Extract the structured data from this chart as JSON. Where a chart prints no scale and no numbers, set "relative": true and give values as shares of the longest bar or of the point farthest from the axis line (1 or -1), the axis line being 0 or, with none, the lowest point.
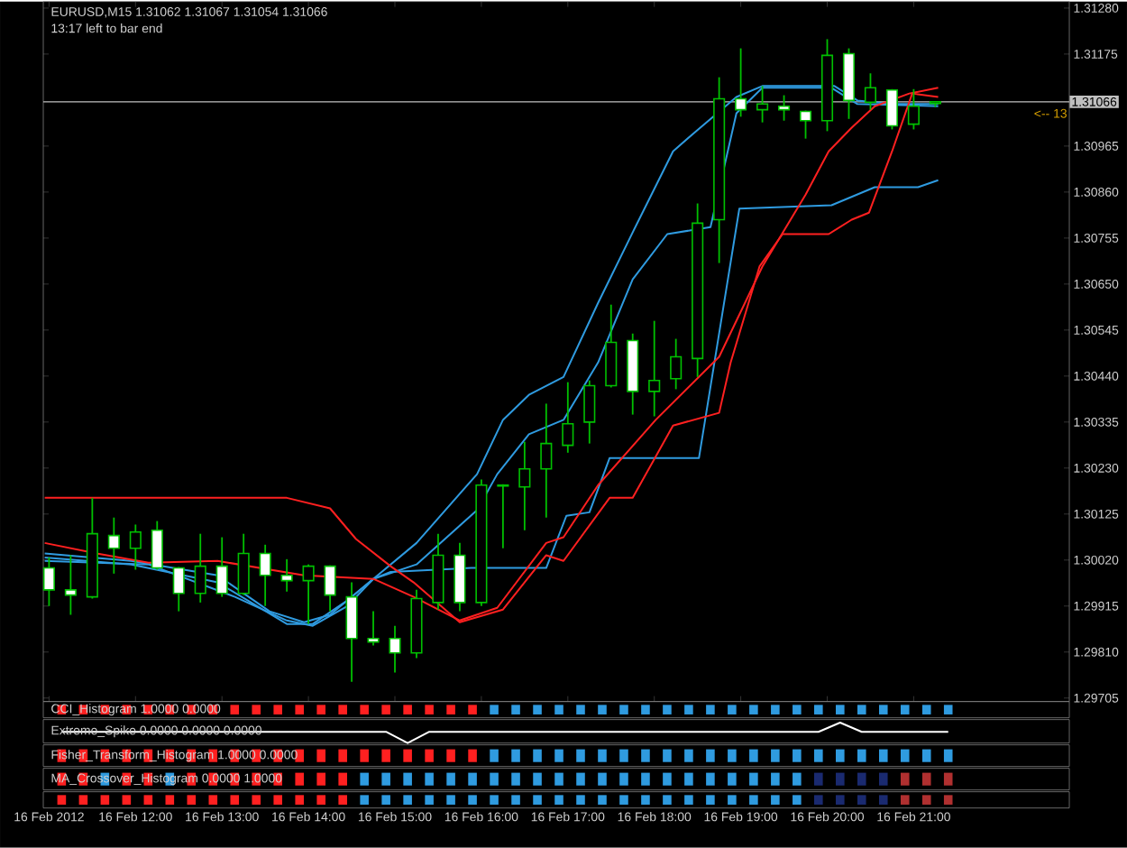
{
  "chart_data": [
    {
      "type": "candlestick",
      "title": "EURUSD,M15  1.31062 1.31067 1.31054 1.31066",
      "color": "#00c000",
      "annotations": [
        "13:17 left to bar end",
        "<-- 13"
      ],
      "x": [
        "2012-02-16T11:00",
        "2012-02-16T11:15",
        "2012-02-16T11:30",
        "2012-02-16T11:45",
        "2012-02-16T12:00",
        "2012-02-16T12:15",
        "2012-02-16T12:30",
        "2012-02-16T12:45",
        "2012-02-16T13:00",
        "2012-02-16T13:15",
        "2012-02-16T13:30",
        "2012-02-16T13:45",
        "2012-02-16T14:00",
        "2012-02-16T14:15",
        "2012-02-16T14:30",
        "2012-02-16T14:45",
        "2012-02-16T15:00",
        "2012-02-16T15:15",
        "2012-02-16T15:30",
        "2012-02-16T15:45",
        "2012-02-16T16:00",
        "2012-02-16T16:15",
        "2012-02-16T16:30",
        "2012-02-16T16:45",
        "2012-02-16T17:00",
        "2012-02-16T17:15",
        "2012-02-16T17:30",
        "2012-02-16T17:45",
        "2012-02-16T18:00",
        "2012-02-16T18:15",
        "2012-02-16T18:30",
        "2012-02-16T18:45",
        "2012-02-16T19:00",
        "2012-02-16T19:15",
        "2012-02-16T19:30",
        "2012-02-16T19:45",
        "2012-02-16T20:00",
        "2012-02-16T20:15",
        "2012-02-16T20:30",
        "2012-02-16T20:45",
        "2012-02-16T21:00",
        "2012-02-16T21:15"
      ],
      "ohlc": [
        [
          1.30002,
          1.30026,
          1.29915,
          1.29952
        ],
        [
          1.29952,
          1.30031,
          1.29895,
          1.2994
        ],
        [
          1.29936,
          1.30162,
          1.29932,
          1.3008
        ],
        [
          1.30076,
          1.30117,
          1.29989,
          1.30047
        ],
        [
          1.30047,
          1.30101,
          1.29998,
          1.30084
        ],
        [
          1.30088,
          1.30109,
          1.29998,
          1.30002
        ],
        [
          1.30002,
          1.30004,
          1.29903,
          1.29944
        ],
        [
          1.29944,
          1.3008,
          1.29923,
          1.30006
        ],
        [
          1.30006,
          1.30072,
          1.29936,
          1.29944
        ],
        [
          1.29944,
          1.3008,
          1.2994,
          1.30035
        ],
        [
          1.30035,
          1.30055,
          1.29915,
          1.29985
        ],
        [
          1.29985,
          1.30022,
          1.29948,
          1.29973
        ],
        [
          1.29973,
          1.3001,
          1.29874,
          1.30006
        ],
        [
          1.30006,
          1.30008,
          1.29903,
          1.2994
        ],
        [
          1.29936,
          1.29969,
          1.29742,
          1.29841
        ],
        [
          1.29841,
          1.29903,
          1.29825,
          1.29833
        ],
        [
          1.29841,
          1.2987,
          1.29763,
          1.29808
        ],
        [
          1.29808,
          1.29952,
          1.29796,
          1.29932
        ],
        [
          1.29923,
          1.3008,
          1.29907,
          1.30031
        ],
        [
          1.30031,
          1.30059,
          1.29903,
          1.29923
        ],
        [
          1.29923,
          1.30204,
          1.29915,
          1.30191
        ],
        [
          1.30191,
          1.30193,
          1.30047,
          1.30189
        ],
        [
          1.30187,
          1.3029,
          1.30088,
          1.30228
        ],
        [
          1.30228,
          1.30377,
          1.30117,
          1.30286
        ],
        [
          1.30282,
          1.30426,
          1.30265,
          1.30331
        ],
        [
          1.30335,
          1.3043,
          1.30286,
          1.30418
        ],
        [
          1.30418,
          1.30603,
          1.30414,
          1.30517
        ],
        [
          1.30521,
          1.30537,
          1.30352,
          1.30405
        ],
        [
          1.30405,
          1.30566,
          1.30348,
          1.3043
        ],
        [
          1.30434,
          1.30525,
          1.3041,
          1.30484
        ],
        [
          1.3048,
          1.30834,
          1.30438,
          1.30789
        ],
        [
          1.30797,
          1.31122,
          1.30698,
          1.31073
        ],
        [
          1.31073,
          1.31188,
          1.31032,
          1.31048
        ],
        [
          1.31048,
          1.31102,
          1.31019,
          1.31061
        ],
        [
          1.31056,
          1.31081,
          1.31023,
          1.31048
        ],
        [
          1.31044,
          1.31046,
          1.30982,
          1.31023
        ],
        [
          1.31023,
          1.31209,
          1.30999,
          1.31172
        ],
        [
          1.31176,
          1.31188,
          1.31027,
          1.31069
        ],
        [
          1.31065,
          1.31131,
          1.31048,
          1.31098
        ],
        [
          1.31093,
          1.31095,
          1.31003,
          1.31011
        ],
        [
          1.31015,
          1.31095,
          1.31003,
          1.31056
        ],
        [
          1.31062,
          1.31067,
          1.31054,
          1.31066
        ]
      ],
      "series": [
        {
          "type": "line",
          "color": "#2f9be0",
          "x": [
            "2012-02-16T10:57",
            "2012-02-16T11:57",
            "2012-02-16T12:57",
            "2012-02-16T13:33",
            "2012-02-16T13:57",
            "2012-02-16T14:15",
            "2012-02-16T14:45",
            "2012-02-16T15:15",
            "2012-02-16T15:57",
            "2012-02-16T16:15",
            "2012-02-16T16:33",
            "2012-02-16T16:57",
            "2012-02-16T17:21",
            "2012-02-16T17:45",
            "2012-02-16T18:13",
            "2012-02-16T18:29",
            "2012-02-16T18:57",
            "2012-02-16T19:15",
            "2012-02-16T20:05",
            "2012-02-16T20:21",
            "2012-02-16T20:45",
            "2012-02-16T21:17"
          ],
          "values": [
            1.30035,
            1.30018,
            1.29985,
            1.29903,
            1.29878,
            1.29895,
            1.29977,
            1.30059,
            1.30216,
            1.3034,
            1.30397,
            1.30438,
            1.30607,
            1.30768,
            1.30953,
            1.30999,
            1.31077,
            1.31102,
            1.31102,
            1.31069,
            1.31061,
            1.31061
          ]
        },
        {
          "type": "line",
          "color": "#2f9be0",
          "x": [
            "2012-02-16T10:57",
            "2012-02-16T12:09",
            "2012-02-16T13:09",
            "2012-02-16T13:45",
            "2012-02-16T14:03",
            "2012-02-16T14:27",
            "2012-02-16T14:45",
            "2012-02-16T15:15",
            "2012-02-16T15:57",
            "2012-02-16T16:11",
            "2012-02-16T16:33",
            "2012-02-16T16:57",
            "2012-02-16T17:21",
            "2012-02-16T17:45",
            "2012-02-16T18:09",
            "2012-02-16T18:39",
            "2012-02-16T18:57",
            "2012-02-16T19:15",
            "2012-02-16T20:03",
            "2012-02-16T20:21",
            "2012-02-16T21:17"
          ],
          "values": [
            1.30018,
            1.3001,
            1.29936,
            1.29882,
            1.2987,
            1.29915,
            1.29977,
            1.3001,
            1.30134,
            1.30216,
            1.30307,
            1.3034,
            1.30471,
            1.30661,
            1.30764,
            1.3078,
            1.3104,
            1.31098,
            1.31098,
            1.31061,
            1.31056
          ]
        },
        {
          "type": "line",
          "color": "#2f9be0",
          "x": [
            "2012-02-16T10:57",
            "2012-02-16T11:57",
            "2012-02-16T12:57",
            "2012-02-16T13:45",
            "2012-02-16T14:03",
            "2012-02-16T14:27",
            "2012-02-16T14:45",
            "2012-02-16T14:57",
            "2012-02-16T15:53",
            "2012-02-16T16:45",
            "2012-02-16T16:59",
            "2012-02-16T17:15",
            "2012-02-16T17:29",
            "2012-02-16T18:31",
            "2012-02-16T18:59",
            "2012-02-16T20:03",
            "2012-02-16T20:33",
            "2012-02-16T21:03",
            "2012-02-16T21:17"
          ],
          "values": [
            1.30026,
            1.3001,
            1.29969,
            1.29874,
            1.29874,
            1.29928,
            1.29977,
            1.29993,
            1.30002,
            1.30002,
            1.30121,
            1.30129,
            1.30253,
            1.30253,
            1.30822,
            1.3083,
            1.30871,
            1.30871,
            1.30887
          ]
        },
        {
          "type": "line",
          "color": "#ff2020",
          "x": [
            "2012-02-16T10:57",
            "2012-02-16T13:45",
            "2012-02-16T14:15",
            "2012-02-16T14:33",
            "2012-02-16T14:57",
            "2012-02-16T15:13",
            "2012-02-16T15:45",
            "2012-02-16T16:15",
            "2012-02-16T16:45",
            "2012-02-16T16:57",
            "2012-02-16T17:29",
            "2012-02-16T17:45",
            "2012-02-16T18:13",
            "2012-02-16T18:45",
            "2012-02-16T18:53",
            "2012-02-16T19:13",
            "2012-02-16T19:29",
            "2012-02-16T20:01",
            "2012-02-16T20:17",
            "2012-02-16T20:29",
            "2012-02-16T20:45",
            "2012-02-16T20:59",
            "2012-02-16T21:17"
          ],
          "values": [
            1.30162,
            1.30162,
            1.30138,
            1.30068,
            1.30006,
            1.29969,
            1.29878,
            1.29907,
            1.30031,
            1.30018,
            1.30162,
            1.30162,
            1.30327,
            1.30356,
            1.30471,
            1.3069,
            1.30764,
            1.30764,
            1.30797,
            1.30813,
            1.30953,
            1.31085,
            1.31077
          ]
        },
        {
          "type": "line",
          "color": "#ff2020",
          "x": [
            "2012-02-16T10:57",
            "2012-02-16T11:33",
            "2012-02-16T12:09",
            "2012-02-16T12:57",
            "2012-02-16T13:57",
            "2012-02-16T14:45",
            "2012-02-16T15:13",
            "2012-02-16T15:45",
            "2012-02-16T16:11",
            "2012-02-16T16:45",
            "2012-02-16T16:57",
            "2012-02-16T17:21",
            "2012-02-16T18:01",
            "2012-02-16T18:45",
            "2012-02-16T19:15",
            "2012-02-16T19:45",
            "2012-02-16T20:01",
            "2012-02-16T20:17",
            "2012-02-16T20:33",
            "2012-02-16T20:57",
            "2012-02-16T21:17"
          ],
          "values": [
            1.30059,
            1.30035,
            1.30014,
            1.30018,
            1.29985,
            1.29977,
            1.29936,
            1.29882,
            1.29911,
            1.30059,
            1.30072,
            1.30191,
            1.3034,
            1.30484,
            1.3069,
            1.30854,
            1.30953,
            1.31007,
            1.31056,
            1.31085,
            1.31098
          ]
        }
      ],
      "xlim": [
        "2012-02-16T10:56",
        "2012-02-16T22:48"
      ],
      "ylim": [
        1.29697,
        1.31295
      ],
      "xticks": [
        {
          "value": "2012-02-16T11:00",
          "label": "16 Feb 2012"
        },
        {
          "value": "2012-02-16T12:00",
          "label": "16 Feb 12:00"
        },
        {
          "value": "2012-02-16T13:00",
          "label": "16 Feb 13:00"
        },
        {
          "value": "2012-02-16T14:00",
          "label": "16 Feb 14:00"
        },
        {
          "value": "2012-02-16T15:00",
          "label": "16 Feb 15:00"
        },
        {
          "value": "2012-02-16T16:00",
          "label": "16 Feb 16:00"
        },
        {
          "value": "2012-02-16T17:00",
          "label": "16 Feb 17:00"
        },
        {
          "value": "2012-02-16T18:00",
          "label": "16 Feb 18:00"
        },
        {
          "value": "2012-02-16T19:00",
          "label": "16 Feb 19:00"
        },
        {
          "value": "2012-02-16T20:00",
          "label": "16 Feb 20:00"
        },
        {
          "value": "2012-02-16T21:00",
          "label": "16 Feb 21:00"
        }
      ],
      "yticks": [
        {
          "value": 1.3128,
          "label": "1.31280"
        },
        1.31175,
        1.30965,
        {
          "value": 1.3086,
          "label": "1.30860"
        },
        1.30755,
        {
          "value": 1.3065,
          "label": "1.30650"
        },
        1.30545,
        {
          "value": 1.3044,
          "label": "1.30440"
        },
        1.30335,
        {
          "value": 1.3023,
          "label": "1.30230"
        },
        1.30125,
        {
          "value": 1.3002,
          "label": "1.30020"
        },
        1.29915,
        {
          "value": 1.2981,
          "label": "1.29810"
        },
        1.29705
      ],
      "ref_lines": [
        {
          "axis": "y",
          "value": 1.31066,
          "label": "1.31066",
          "color": "#c0c0c0"
        }
      ]
    },
    {
      "type": "bar",
      "relative": true,
      "title": "CCI_Histogram 1.0000 0.0000",
      "categories": [
        null,
        null,
        null,
        null,
        null,
        null,
        null,
        null,
        null,
        null,
        null,
        null,
        null,
        null,
        null,
        null,
        null,
        null,
        null,
        null,
        null,
        null,
        null,
        null,
        null,
        null,
        null,
        null,
        null,
        null,
        null,
        null,
        null,
        null,
        null,
        null,
        null,
        null,
        null,
        null,
        null,
        null
      ],
      "values": [
        1,
        1,
        1,
        1,
        1,
        1,
        1,
        1,
        1,
        1,
        1,
        1,
        1,
        1,
        1,
        1,
        1,
        1,
        1,
        1,
        1,
        1,
        1,
        1,
        1,
        1,
        1,
        1,
        1,
        1,
        1,
        1,
        1,
        1,
        1,
        1,
        1,
        1,
        1,
        1,
        1,
        1
      ],
      "colors": [
        "#ff2020",
        "#ff2020",
        "#ff2020",
        "#ff2020",
        "#ff2020",
        "#ff2020",
        "#ff2020",
        "#ff2020",
        "#ff2020",
        "#ff2020",
        "#ff2020",
        "#ff2020",
        "#ff2020",
        "#ff2020",
        "#ff2020",
        "#ff2020",
        "#ff2020",
        "#ff2020",
        "#ff2020",
        "#ff2020",
        "#2f9be0",
        "#2f9be0",
        "#2f9be0",
        "#2f9be0",
        "#2f9be0",
        "#2f9be0",
        "#2f9be0",
        "#2f9be0",
        "#2f9be0",
        "#2f9be0",
        "#2f9be0",
        "#2f9be0",
        "#2f9be0",
        "#2f9be0",
        "#2f9be0",
        "#2f9be0",
        "#2f9be0",
        "#2f9be0",
        "#2f9be0",
        "#2f9be0",
        "#2f9be0",
        "#2f9be0"
      ]
    },
    {
      "type": "line",
      "relative": true,
      "title": "Extreme_Spike 0.0000 0.0000 0.0000",
      "color": "#ffffff",
      "categories": [
        null,
        null,
        null,
        null,
        null,
        null,
        null,
        null,
        null,
        null,
        null,
        null,
        null,
        null,
        null,
        null,
        null,
        null,
        null,
        null,
        null,
        null,
        null,
        null,
        null,
        null,
        null,
        null,
        null,
        null,
        null,
        null,
        null,
        null,
        null,
        null,
        null,
        null,
        null,
        null,
        null,
        null
      ],
      "values": [
        0.55,
        0.55,
        0.55,
        0.55,
        0.55,
        0.55,
        0.55,
        0.55,
        0.55,
        0.55,
        0.55,
        0.55,
        0.55,
        0.55,
        0.55,
        0.55,
        0,
        0.55,
        0.55,
        0.55,
        0.55,
        0.55,
        0.55,
        0.55,
        0.55,
        0.55,
        0.55,
        0.55,
        0.55,
        0.55,
        0.55,
        0.55,
        0.55,
        0.55,
        0.55,
        0.55,
        1,
        0.55,
        0.55,
        0.55,
        0.55,
        0.55
      ]
    },
    {
      "type": "bar",
      "relative": true,
      "title": "Fisher_Transform_Histogram 1.0000 0.0000",
      "categories": [
        null,
        null,
        null,
        null,
        null,
        null,
        null,
        null,
        null,
        null,
        null,
        null,
        null,
        null,
        null,
        null,
        null,
        null,
        null,
        null,
        null,
        null,
        null,
        null,
        null,
        null,
        null,
        null,
        null,
        null,
        null,
        null,
        null,
        null,
        null,
        null,
        null,
        null,
        null,
        null,
        null,
        null
      ],
      "values": [
        1,
        1,
        1,
        1,
        1,
        1,
        1,
        1,
        1,
        1,
        1,
        1,
        1,
        1,
        1,
        1,
        1,
        1,
        1,
        1,
        1,
        1,
        1,
        1,
        1,
        1,
        1,
        1,
        1,
        1,
        1,
        1,
        1,
        1,
        1,
        1,
        1,
        1,
        1,
        1,
        1,
        1
      ],
      "colors": [
        "#ff2020",
        "#ff2020",
        "#ff2020",
        "#ff2020",
        "#ff2020",
        "#ff2020",
        "#ff2020",
        "#ff2020",
        "#ff2020",
        "#ff2020",
        "#ff2020",
        "#ff2020",
        "#ff2020",
        "#ff2020",
        "#ff2020",
        "#ff2020",
        "#ff2020",
        "#ff2020",
        "#ff2020",
        "#ff2020",
        "#2f9be0",
        "#2f9be0",
        "#2f9be0",
        "#2f9be0",
        "#2f9be0",
        "#2f9be0",
        "#2f9be0",
        "#2f9be0",
        "#2f9be0",
        "#2f9be0",
        "#2f9be0",
        "#2f9be0",
        "#2f9be0",
        "#2f9be0",
        "#2f9be0",
        "#2f9be0",
        "#2f9be0",
        "#2f9be0",
        "#2f9be0",
        "#2f9be0",
        "#2f9be0",
        "#2f9be0"
      ]
    },
    {
      "type": "bar",
      "relative": true,
      "title": "MA_Crossover_Histogram 0.0000 1.0000",
      "categories": [
        null,
        null,
        null,
        null,
        null,
        null,
        null,
        null,
        null,
        null,
        null,
        null,
        null,
        null,
        null,
        null,
        null,
        null,
        null,
        null,
        null,
        null,
        null,
        null,
        null,
        null,
        null,
        null,
        null,
        null,
        null,
        null,
        null,
        null,
        null,
        null,
        null,
        null,
        null,
        null,
        null,
        null
      ],
      "values": [
        1,
        1,
        1,
        1,
        1,
        1,
        1,
        1,
        1,
        1,
        1,
        1,
        1,
        1,
        1,
        1,
        1,
        1,
        1,
        1,
        1,
        1,
        1,
        1,
        1,
        1,
        1,
        1,
        1,
        1,
        1,
        1,
        1,
        1,
        1,
        1,
        1,
        1,
        1,
        1,
        1,
        1
      ],
      "colors": [
        "#ff2020",
        "#ff2020",
        "#2f9be0",
        "#ff2020",
        "#ff2020",
        "#2f9be0",
        "#ff2020",
        "#ff2020",
        "#ff2020",
        "#ff2020",
        "#ff2020",
        "#ff2020",
        "#ff2020",
        "#ff2020",
        "#2f9be0",
        "#2f9be0",
        "#2f9be0",
        "#2f9be0",
        "#2f9be0",
        "#2f9be0",
        "#2f9be0",
        "#2f9be0",
        "#2f9be0",
        "#2f9be0",
        "#2f9be0",
        "#2f9be0",
        "#2f9be0",
        "#2f9be0",
        "#2f9be0",
        "#2f9be0",
        "#2f9be0",
        "#2f9be0",
        "#2f9be0",
        "#2f9be0",
        "#2f9be0",
        "#1a2a70",
        "#1a2a70",
        "#1a2a70",
        "#1a2a70",
        "#b03030",
        "#b03030",
        "#b03030"
      ]
    },
    {
      "type": "bar",
      "relative": true,
      "categories": [
        null,
        null,
        null,
        null,
        null,
        null,
        null,
        null,
        null,
        null,
        null,
        null,
        null,
        null,
        null,
        null,
        null,
        null,
        null,
        null,
        null,
        null,
        null,
        null,
        null,
        null,
        null,
        null,
        null,
        null,
        null,
        null,
        null,
        null,
        null,
        null,
        null,
        null,
        null,
        null,
        null,
        null
      ],
      "values": [
        1,
        1,
        1,
        1,
        1,
        1,
        1,
        1,
        1,
        1,
        1,
        1,
        1,
        1,
        1,
        1,
        1,
        1,
        1,
        1,
        1,
        1,
        1,
        1,
        1,
        1,
        1,
        1,
        1,
        1,
        1,
        1,
        1,
        1,
        1,
        1,
        1,
        1,
        1,
        1,
        1,
        1
      ],
      "colors": [
        "#ff2020",
        "#ff2020",
        "#ff2020",
        "#ff2020",
        "#ff2020",
        "#ff2020",
        "#ff2020",
        "#ff2020",
        "#ff2020",
        "#ff2020",
        "#ff2020",
        "#ff2020",
        "#ff2020",
        "#ff2020",
        "#2f9be0",
        "#2f9be0",
        "#2f9be0",
        "#2f9be0",
        "#2f9be0",
        "#2f9be0",
        "#2f9be0",
        "#2f9be0",
        "#2f9be0",
        "#2f9be0",
        "#2f9be0",
        "#2f9be0",
        "#2f9be0",
        "#2f9be0",
        "#2f9be0",
        "#2f9be0",
        "#2f9be0",
        "#2f9be0",
        "#2f9be0",
        "#2f9be0",
        "#2f9be0",
        "#1a2a70",
        "#1a2a70",
        "#1a2a70",
        "#1a2a70",
        "#b03030",
        "#b03030",
        "#b03030"
      ]
    }
  ]
}
